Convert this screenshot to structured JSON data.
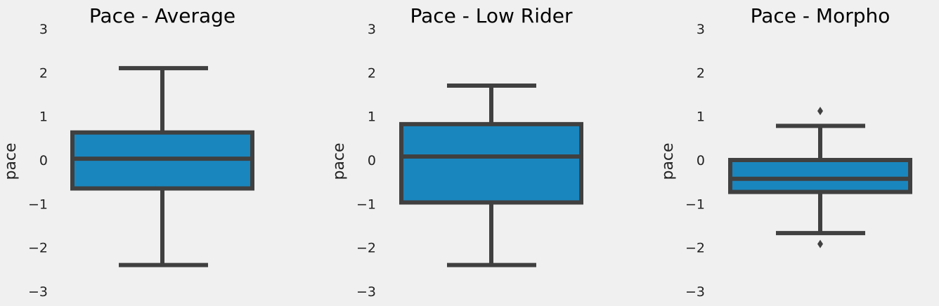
{
  "colors": {
    "background": "#f0f0f0",
    "box_fill": "#1a86be",
    "line": "#404040"
  },
  "chart_data": [
    {
      "type": "box",
      "title": "Pace - Average",
      "ylabel": "pace",
      "ylim": [
        -3,
        3
      ],
      "yticks": [
        "3",
        "2",
        "1",
        "0",
        "−1",
        "−2",
        "−3"
      ],
      "ytick_values": [
        3,
        2,
        1,
        0,
        -1,
        -2,
        -3
      ],
      "box": {
        "whisker_low": -2.4,
        "q1": -0.65,
        "median": 0.03,
        "q3": 0.63,
        "whisker_high": 2.1,
        "outliers": []
      }
    },
    {
      "type": "box",
      "title": "Pace - Low Rider",
      "ylabel": "pace",
      "ylim": [
        -3,
        3
      ],
      "yticks": [
        "3",
        "2",
        "1",
        "0",
        "−1",
        "−2",
        "−3"
      ],
      "ytick_values": [
        3,
        2,
        1,
        0,
        -1,
        -2,
        -3
      ],
      "box": {
        "whisker_low": -2.4,
        "q1": -0.97,
        "median": 0.08,
        "q3": 0.82,
        "whisker_high": 1.7,
        "outliers": []
      }
    },
    {
      "type": "box",
      "title": "Pace - Morpho",
      "ylabel": "pace",
      "ylim": [
        -3,
        3
      ],
      "yticks": [
        "3",
        "2",
        "1",
        "0",
        "−1",
        "−2",
        "−3"
      ],
      "ytick_values": [
        3,
        2,
        1,
        0,
        -1,
        -2,
        -3
      ],
      "box": {
        "whisker_low": -1.67,
        "q1": -0.73,
        "median": -0.43,
        "q3": 0.0,
        "whisker_high": 0.78,
        "outliers": [
          1.12,
          -1.92
        ]
      }
    }
  ]
}
